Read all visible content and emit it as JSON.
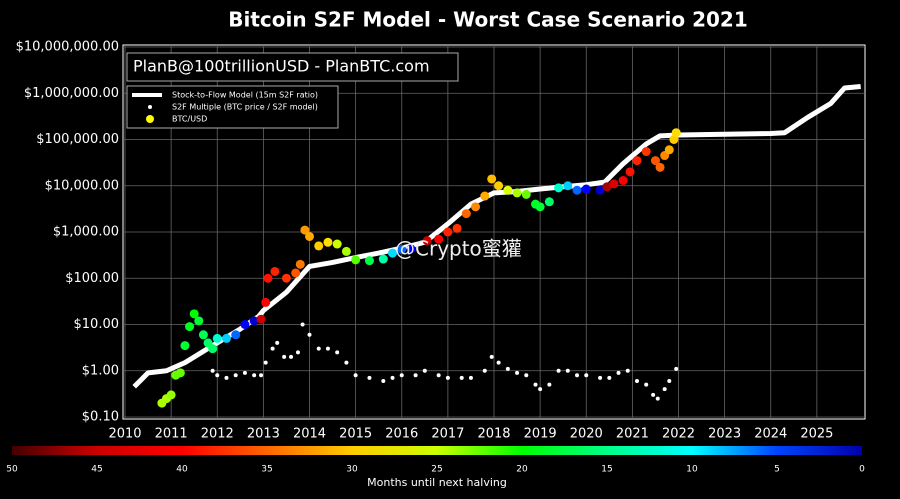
{
  "chart_data": {
    "type": "line",
    "title": "Bitcoin S2F Model - Worst Case Scenario 2021",
    "annotations": [
      "PlanB@100trillionUSD - PlanBTC.com",
      "@Crypto蜜獾"
    ],
    "log_y": true,
    "grid": true,
    "legend": "upper left",
    "xlim": [
      2010,
      2026
    ],
    "xticks": [
      2010,
      2011,
      2012,
      2013,
      2014,
      2015,
      2016,
      2017,
      2018,
      2019,
      2020,
      2021,
      2022,
      2023,
      2024,
      2025
    ],
    "ylim": [
      0.1,
      10000000
    ],
    "yticks": [
      {
        "value": 0.1,
        "label": "$0.10"
      },
      {
        "value": 1,
        "label": "$1.00"
      },
      {
        "value": 10,
        "label": "$10.00"
      },
      {
        "value": 100,
        "label": "$100.00"
      },
      {
        "value": 1000,
        "label": "$1,000.00"
      },
      {
        "value": 10000,
        "label": "$10,000.00"
      },
      {
        "value": 100000,
        "label": "$100,000.00"
      },
      {
        "value": 1000000,
        "label": "$1,000,000.00"
      },
      {
        "value": 10000000,
        "label": "$10,000,000.00"
      }
    ],
    "series": [
      {
        "name": "Stock-to-Flow Model (15m S2F ratio)",
        "type": "line",
        "color": "#ffffff",
        "x": [
          2010.2,
          2010.5,
          2010.9,
          2011.3,
          2011.9,
          2012.5,
          2012.9,
          2013.0,
          2013.5,
          2014.0,
          2014.5,
          2015.0,
          2015.5,
          2016.0,
          2016.5,
          2017.0,
          2017.5,
          2018.0,
          2018.5,
          2019.0,
          2019.5,
          2020.0,
          2020.4,
          2020.8,
          2021.3,
          2021.6,
          2022.0,
          2023.0,
          2024.0,
          2024.3,
          2024.8,
          2025.3,
          2025.6,
          2025.95
        ],
        "values": [
          0.45,
          0.9,
          1.0,
          1.5,
          3.5,
          8,
          15,
          20,
          50,
          180,
          220,
          280,
          350,
          450,
          600,
          1500,
          4000,
          7000,
          7500,
          8500,
          9500,
          10500,
          12000,
          30000,
          80000,
          120000,
          125000,
          130000,
          135000,
          140000,
          300000,
          600000,
          1300000,
          1400000
        ]
      },
      {
        "name": "S2F Multiple (BTC price / S2F model)",
        "type": "scatter",
        "color": "#ffffff",
        "x": [
          2011.9,
          2012.0,
          2012.2,
          2012.4,
          2012.6,
          2012.8,
          2012.95,
          2013.05,
          2013.2,
          2013.3,
          2013.45,
          2013.6,
          2013.75,
          2013.85,
          2014.0,
          2014.2,
          2014.4,
          2014.6,
          2014.8,
          2015.0,
          2015.3,
          2015.6,
          2015.8,
          2016.0,
          2016.3,
          2016.5,
          2016.8,
          2017.0,
          2017.3,
          2017.5,
          2017.8,
          2017.95,
          2018.1,
          2018.3,
          2018.5,
          2018.7,
          2018.9,
          2019.0,
          2019.2,
          2019.4,
          2019.6,
          2019.8,
          2020.0,
          2020.3,
          2020.5,
          2020.7,
          2020.9,
          2021.1,
          2021.3,
          2021.45,
          2021.55,
          2021.7,
          2021.8,
          2021.95
        ],
        "values": [
          1.0,
          0.8,
          0.7,
          0.8,
          0.9,
          0.8,
          0.8,
          1.5,
          3,
          4,
          2,
          2,
          2.5,
          10,
          6,
          3,
          3,
          2.5,
          1.5,
          0.8,
          0.7,
          0.6,
          0.7,
          0.8,
          0.8,
          1.0,
          0.8,
          0.7,
          0.7,
          0.7,
          1.0,
          2.0,
          1.5,
          1.1,
          0.9,
          0.8,
          0.5,
          0.4,
          0.5,
          1.0,
          1.0,
          0.8,
          0.8,
          0.7,
          0.7,
          0.9,
          1.0,
          0.6,
          0.5,
          0.3,
          0.25,
          0.4,
          0.6,
          1.1
        ]
      },
      {
        "name": "BTC/USD",
        "type": "scatter",
        "color": "#ffff00",
        "x": [
          2010.8,
          2010.9,
          2011.0,
          2011.1,
          2011.2,
          2011.3,
          2011.4,
          2011.5,
          2011.6,
          2011.7,
          2011.8,
          2011.9,
          2012.0,
          2012.2,
          2012.4,
          2012.6,
          2012.8,
          2012.95,
          2013.05,
          2013.1,
          2013.25,
          2013.5,
          2013.7,
          2013.8,
          2013.9,
          2014.0,
          2014.2,
          2014.4,
          2014.6,
          2014.8,
          2015.0,
          2015.3,
          2015.6,
          2015.8,
          2016.0,
          2016.2,
          2016.55,
          2016.8,
          2017.0,
          2017.2,
          2017.4,
          2017.6,
          2017.8,
          2017.95,
          2018.1,
          2018.3,
          2018.5,
          2018.7,
          2018.9,
          2019.0,
          2019.2,
          2019.4,
          2019.6,
          2019.8,
          2020.0,
          2020.3,
          2020.45,
          2020.6,
          2020.8,
          2020.95,
          2021.1,
          2021.3,
          2021.5,
          2021.6,
          2021.7,
          2021.8,
          2021.9,
          2021.95
        ],
        "values": [
          0.2,
          0.25,
          0.3,
          0.8,
          0.9,
          3.5,
          9,
          17,
          12,
          6,
          4,
          3,
          5,
          5,
          6,
          10,
          12,
          13,
          30,
          100,
          140,
          100,
          130,
          200,
          1100,
          800,
          500,
          600,
          550,
          380,
          250,
          240,
          260,
          350,
          420,
          430,
          650,
          700,
          1000,
          1200,
          2500,
          3500,
          6000,
          14000,
          10000,
          8000,
          7000,
          6500,
          4000,
          3500,
          4500,
          9000,
          10000,
          8000,
          8500,
          8000,
          9500,
          11000,
          13000,
          20000,
          35000,
          55000,
          35000,
          25000,
          45000,
          60000,
          100000,
          140000
        ],
        "colors": [
          "#aaff00",
          "#aaff00",
          "#99ff00",
          "#66ff00",
          "#66ff00",
          "#00ff33",
          "#00ff22",
          "#00ff00",
          "#00ff33",
          "#00ff55",
          "#00ff66",
          "#00ff66",
          "#00ffcc",
          "#00ccff",
          "#0066ff",
          "#0000ff",
          "#0000cc",
          "#cc0000",
          "#ff0000",
          "#ff1100",
          "#ff2200",
          "#ff3300",
          "#ff5500",
          "#ff7700",
          "#ff9900",
          "#ffaa00",
          "#ffcc00",
          "#ffdd00",
          "#ccff00",
          "#aaff00",
          "#55ff00",
          "#00ff44",
          "#00ffaa",
          "#00ddff",
          "#0066ff",
          "#0000ff",
          "#cc0000",
          "#ff0000",
          "#ff2200",
          "#ff3300",
          "#ff6600",
          "#ff8800",
          "#ffaa00",
          "#ffbb00",
          "#ffcc00",
          "#ddff00",
          "#aaff00",
          "#66ff00",
          "#00ff22",
          "#00ff33",
          "#00ff66",
          "#00ffcc",
          "#00ccff",
          "#0066ff",
          "#0000ff",
          "#0000cc",
          "#aa0000",
          "#dd0000",
          "#ff0000",
          "#ff1100",
          "#ff2200",
          "#ff3300",
          "#ff5500",
          "#ff6600",
          "#ff8800",
          "#ffaa00",
          "#ffcc00",
          "#ffdd00"
        ]
      }
    ],
    "colorbar": {
      "label": "Months until next halving",
      "lim": [
        50,
        0
      ],
      "ticks": [
        50,
        45,
        40,
        35,
        30,
        25,
        20,
        15,
        10,
        5,
        0
      ],
      "colors": [
        "#440000",
        "#cc0000",
        "#ff0000",
        "#ff6600",
        "#ffcc00",
        "#ccff00",
        "#00ff00",
        "#00ff88",
        "#00ffff",
        "#0044ff",
        "#0000aa"
      ]
    }
  }
}
